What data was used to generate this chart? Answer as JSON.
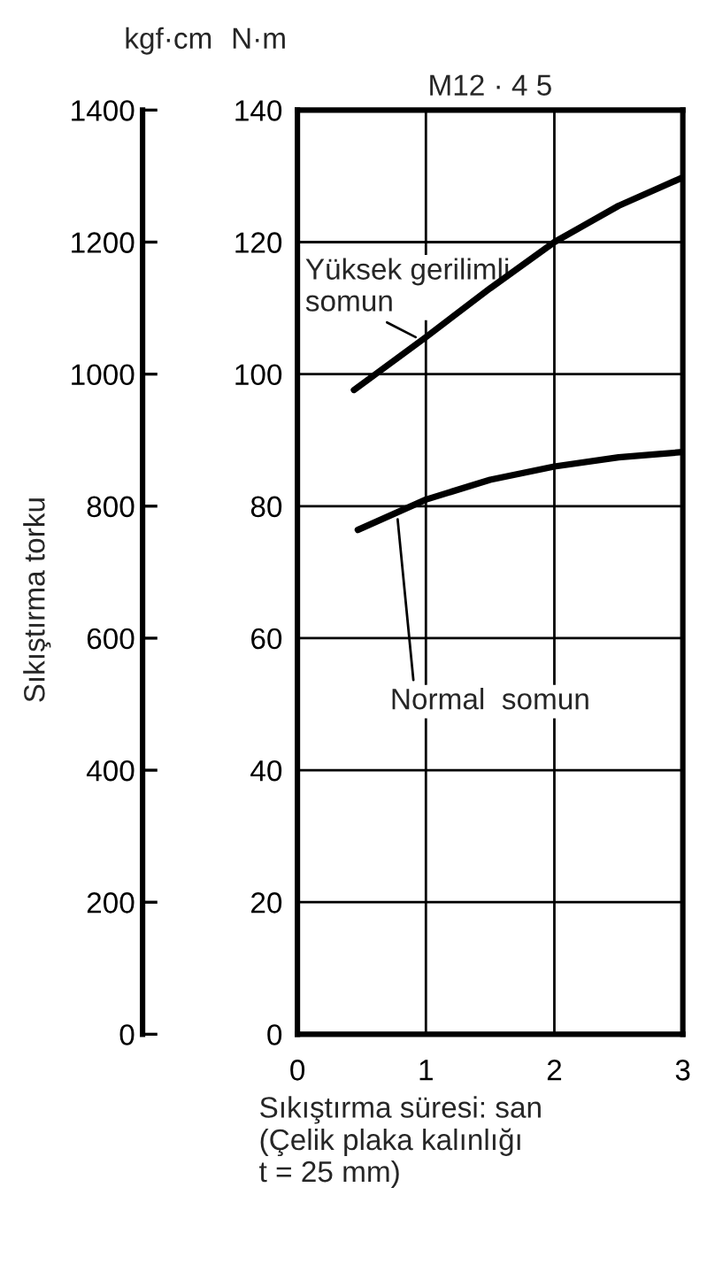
{
  "chart_data": {
    "type": "line",
    "title": "M12 · 4 5",
    "xlabel": "Sıkıştırma süresi: san\n(Çelik plaka kalınlığı\nt = 25 mm)",
    "ylabel": "Sıkıştırma torku",
    "y2label": "N·m",
    "annotations": [
      "kgf·cm",
      {
        "text": "Yüksek gerilimli\nsomun",
        "x": 0.92,
        "y": 1056
      },
      {
        "text": "Normal  somun",
        "x": 0.78,
        "y": 780
      }
    ],
    "series": [
      {
        "color": "#000000",
        "x": [
          0.44,
          1,
          1.5,
          2,
          2.5,
          3
        ],
        "values": [
          976,
          1056,
          1130,
          1200,
          1255,
          1298
        ]
      },
      {
        "color": "#000000",
        "x": [
          0.47,
          1,
          1.5,
          2,
          2.5,
          3
        ],
        "values": [
          764,
          810,
          840,
          860,
          874,
          882
        ]
      }
    ],
    "xlim": [
      0,
      3
    ],
    "xticks": [
      0,
      1,
      2,
      3
    ],
    "ylim": [
      0,
      1400
    ],
    "yticks": [
      0,
      200,
      400,
      600,
      800,
      1000,
      1200,
      1400
    ],
    "y2lim": [
      0,
      140
    ],
    "y2ticks": [
      0,
      20,
      40,
      60,
      80,
      100,
      120,
      140
    ],
    "grid": true,
    "marker": "none",
    "line_style": "solid"
  }
}
